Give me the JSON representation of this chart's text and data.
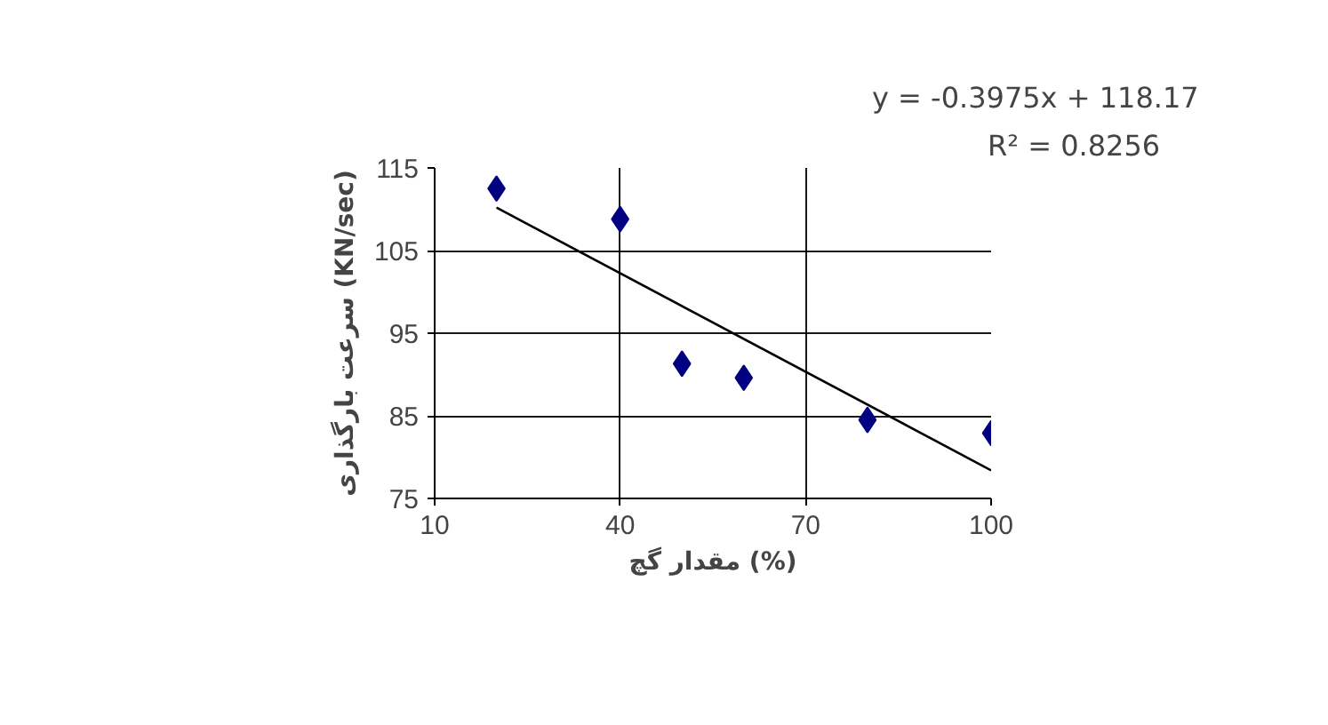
{
  "chart_data": {
    "type": "scatter",
    "xlabel": "مقدار گچ (%)",
    "ylabel": "سرعت بارگذاری (KN/sec)",
    "annotations": [
      "y = -0.3975x + 118.17",
      "R² = 0.8256"
    ],
    "x": [
      20,
      40,
      50,
      60,
      80,
      100
    ],
    "series": [
      {
        "type": "scatter",
        "color": "#000080",
        "marker": "diamond",
        "values": [
          112.5,
          108.8,
          91.3,
          89.6,
          84.5,
          82.9
        ]
      },
      {
        "type": "line",
        "color": "#000000",
        "x": [
          20,
          100
        ],
        "values": [
          110.2,
          78.4
        ],
        "line_style": "solid"
      }
    ],
    "xlim": [
      10,
      100
    ],
    "ylim": [
      75,
      115
    ],
    "xticks": [
      10,
      40,
      70,
      100
    ],
    "yticks": [
      75,
      85,
      95,
      105,
      115
    ],
    "grid": true,
    "legend": false
  }
}
